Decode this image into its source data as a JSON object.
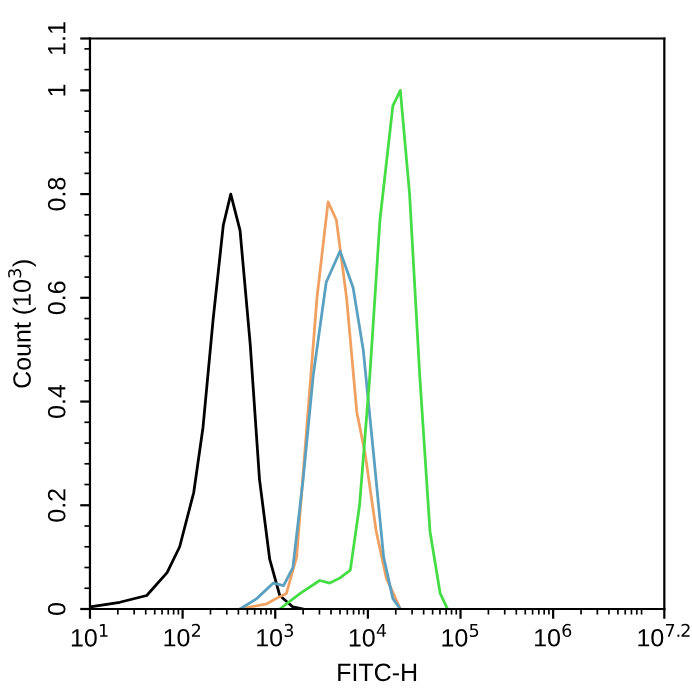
{
  "chart_data": {
    "type": "line",
    "xlabel": "FITC-H",
    "ylabel": "Count (10$^{3}$)",
    "log": "x",
    "grid": false,
    "legend": false,
    "marker": "none",
    "line_style": "solid",
    "xlim": [
      10,
      15848932
    ],
    "ylim": [
      0,
      1.1
    ],
    "xticks": [
      {
        "value": 10,
        "label": "10$^{1}$"
      },
      {
        "value": 100,
        "label": "10$^{2}$"
      },
      {
        "value": 1000,
        "label": "10$^{3}$"
      },
      {
        "value": 10000,
        "label": "10$^{4}$"
      },
      {
        "value": 100000,
        "label": "10$^{5}$"
      },
      {
        "value": 1000000,
        "label": "10$^{6}$"
      },
      {
        "value": 15848932,
        "label": "10$^{7.2}$"
      }
    ],
    "yticks": [
      0,
      0.2,
      0.4,
      0.6,
      0.8,
      1,
      1.1
    ],
    "series": [
      {
        "color": "#000000",
        "x": [
          10,
          21,
          41,
          68,
          93,
          132,
          166,
          214,
          275,
          331,
          417,
          537,
          676,
          871,
          1120,
          1550,
          2000
        ],
        "values": [
          0.004,
          0.013,
          0.026,
          0.07,
          0.12,
          0.225,
          0.35,
          0.56,
          0.74,
          0.8,
          0.73,
          0.51,
          0.25,
          0.096,
          0.026,
          0.004,
          0
        ]
      },
      {
        "color": "#f0a060",
        "x": [
          417,
          813,
          1020,
          1320,
          1700,
          2190,
          2820,
          3720,
          4570,
          5890,
          7590,
          9330,
          12300,
          15800,
          22400
        ],
        "values": [
          0,
          0.01,
          0.02,
          0.03,
          0.1,
          0.35,
          0.6,
          0.785,
          0.75,
          0.6,
          0.38,
          0.3,
          0.15,
          0.06,
          0
        ]
      },
      {
        "color": "#5aa0c0",
        "x": [
          417,
          631,
          955,
          1230,
          1550,
          2000,
          2570,
          3550,
          5010,
          6920,
          8910,
          11500,
          14800,
          18600,
          22400
        ],
        "values": [
          0,
          0.02,
          0.05,
          0.045,
          0.08,
          0.25,
          0.45,
          0.63,
          0.69,
          0.62,
          0.5,
          0.3,
          0.1,
          0.02,
          0
        ]
      },
      {
        "color": "#44dd44",
        "x": [
          1120,
          1860,
          3020,
          3890,
          5010,
          6460,
          8130,
          10500,
          13500,
          18600,
          22400,
          28200,
          36300,
          46800,
          60300,
          72400
        ],
        "values": [
          0,
          0.03,
          0.055,
          0.05,
          0.06,
          0.075,
          0.2,
          0.45,
          0.75,
          0.97,
          1.0,
          0.8,
          0.45,
          0.15,
          0.03,
          0
        ]
      }
    ]
  }
}
